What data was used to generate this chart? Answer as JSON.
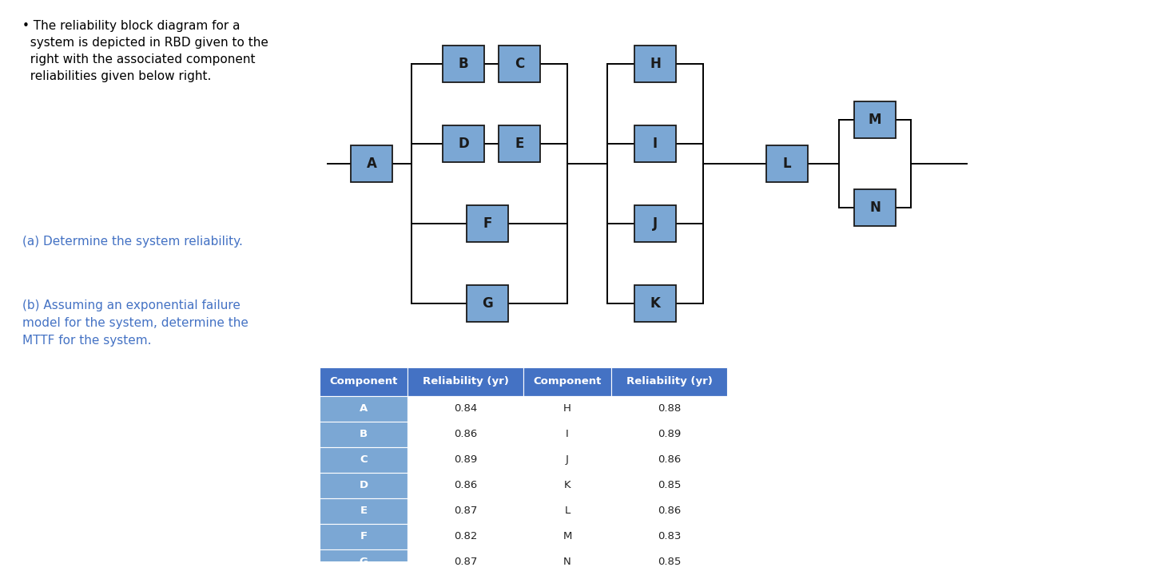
{
  "title_bullet": "• The reliability block diagram for a\n  system is depicted in RBD given to the\n  right with the associated component\n  reliabilities given below right.",
  "question_a": "(a) Determine the system reliability.",
  "question_b": "(b) Assuming an exponential failure\nmodel for the system, determine the\nMTTF for the system.",
  "box_color": "#7ba7d4",
  "box_edge_color": "#1a1a1a",
  "text_color_questions": "#4472c4",
  "background_color": "#ffffff",
  "table_header_color": "#4472c4",
  "table_row_color1": "#7ba7d4",
  "table_data": {
    "left": [
      [
        "A",
        "0.84"
      ],
      [
        "B",
        "0.86"
      ],
      [
        "C",
        "0.89"
      ],
      [
        "D",
        "0.86"
      ],
      [
        "E",
        "0.87"
      ],
      [
        "F",
        "0.82"
      ],
      [
        "G",
        "0.87"
      ]
    ],
    "right": [
      [
        "H",
        "0.88"
      ],
      [
        "I",
        "0.89"
      ],
      [
        "J",
        "0.86"
      ],
      [
        "K",
        "0.85"
      ],
      [
        "L",
        "0.86"
      ],
      [
        "M",
        "0.83"
      ],
      [
        "N",
        "0.85"
      ]
    ]
  }
}
